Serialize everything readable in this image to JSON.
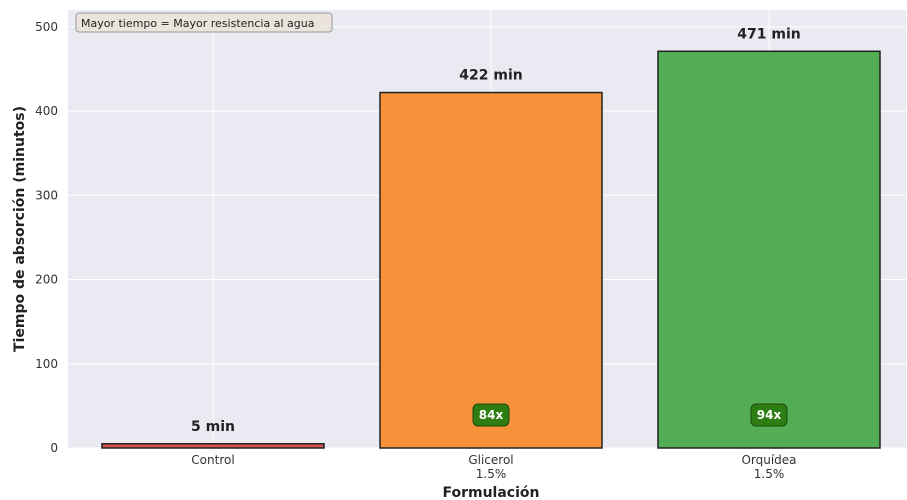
{
  "chart_data": {
    "type": "bar",
    "categories": [
      "Control",
      "Glicerol\n1.5%",
      "Orquídea\n1.5%"
    ],
    "values": [
      5,
      422,
      471
    ],
    "value_labels": [
      "5 min",
      "422 min",
      "471 min"
    ],
    "ratio_labels": [
      "",
      "84x",
      "94x"
    ],
    "bar_colors": [
      "#d9534f",
      "#f7923a",
      "#52ad54"
    ],
    "badge_color": "#2e7d12",
    "title": "",
    "xlabel": "Formulación",
    "ylabel": "Tiempo de absorción (minutos)",
    "ylim": [
      0,
      520
    ],
    "yticks": [
      0,
      100,
      200,
      300,
      400,
      500
    ],
    "grid": true,
    "annotation": "Mayor tiempo = Mayor resistencia al agua"
  }
}
